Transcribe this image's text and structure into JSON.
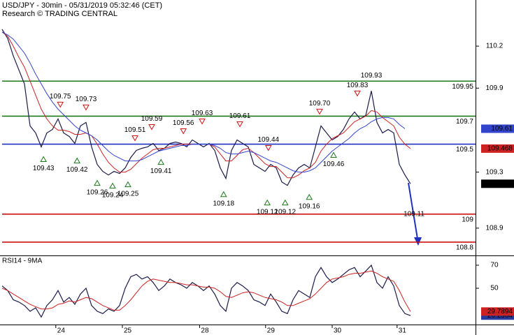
{
  "chart_data": [
    {
      "type": "line",
      "title": "USD/JPY - 30min - 05/31/2019 05:32:46 (CET)",
      "subtitle": "Research © TRADING CENTRAL",
      "xlim": [
        0,
        84.5
      ],
      "xticks": [
        {
          "value": 9.6,
          "label": "24"
        },
        {
          "value": 21.5,
          "label": "25"
        },
        {
          "value": 35.3,
          "label": "28"
        },
        {
          "value": 47.1,
          "label": "29"
        },
        {
          "value": 59,
          "label": "30"
        },
        {
          "value": 70.6,
          "label": "31"
        }
      ],
      "ylim": [
        108.71,
        110.345
      ],
      "yticks": [
        110.2,
        109.9,
        109.3,
        108.9
      ],
      "grid": false,
      "series": [
        {
          "color": "#1a1a4a",
          "last_label": 109.217,
          "values": [
            110.32,
            110.255,
            110.13,
            110.03,
            109.93,
            109.63,
            109.58,
            109.48,
            109.58,
            109.605,
            109.68,
            109.58,
            109.555,
            109.505,
            109.63,
            109.655,
            109.48,
            109.355,
            109.305,
            109.28,
            109.305,
            109.29,
            109.33,
            109.405,
            109.455,
            109.47,
            109.48,
            109.505,
            109.455,
            109.47,
            109.505,
            109.515,
            109.505,
            109.48,
            109.53,
            109.505,
            109.48,
            109.505,
            109.455,
            109.33,
            109.255,
            109.455,
            109.53,
            109.505,
            109.48,
            109.355,
            109.33,
            109.305,
            109.355,
            109.33,
            109.23,
            109.205,
            109.28,
            109.33,
            109.355,
            109.33,
            109.48,
            109.63,
            109.58,
            109.53,
            109.555,
            109.605,
            109.68,
            109.73,
            109.68,
            109.705,
            109.88,
            109.655,
            109.58,
            109.605,
            109.58,
            109.355,
            109.28,
            109.217
          ]
        },
        {
          "color": "#cc2222",
          "last_label": 109.468,
          "values": [
            110.3,
            110.27,
            110.2,
            110.12,
            110.05,
            109.95,
            109.85,
            109.75,
            109.68,
            109.63,
            109.6,
            109.6,
            109.59,
            109.57,
            109.57,
            109.58,
            109.56,
            109.5,
            109.43,
            109.37,
            109.33,
            109.3,
            109.3,
            109.32,
            109.36,
            109.4,
            109.43,
            109.46,
            109.47,
            109.47,
            109.48,
            109.49,
            109.5,
            109.5,
            109.5,
            109.5,
            109.5,
            109.5,
            109.48,
            109.43,
            109.38,
            109.38,
            109.42,
            109.46,
            109.47,
            109.44,
            109.4,
            109.36,
            109.34,
            109.34,
            109.3,
            109.26,
            109.26,
            109.28,
            109.31,
            109.33,
            109.37,
            109.45,
            109.5,
            109.54,
            109.56,
            109.58,
            109.62,
            109.66,
            109.68,
            109.7,
            109.74,
            109.73,
            109.69,
            109.66,
            109.63,
            109.55,
            109.5,
            109.468
          ]
        },
        {
          "color": "#3344cc",
          "last_label": 109.61,
          "values": [
            110.3,
            110.28,
            110.25,
            110.2,
            110.15,
            110.08,
            110.0,
            109.93,
            109.86,
            109.8,
            109.75,
            109.71,
            109.67,
            109.63,
            109.6,
            109.58,
            109.56,
            109.53,
            109.49,
            109.45,
            109.42,
            109.4,
            109.38,
            109.38,
            109.38,
            109.39,
            109.41,
            109.43,
            109.45,
            109.46,
            109.47,
            109.48,
            109.49,
            109.49,
            109.5,
            109.5,
            109.5,
            109.5,
            109.49,
            109.47,
            109.44,
            109.43,
            109.43,
            109.44,
            109.45,
            109.44,
            109.42,
            109.4,
            109.38,
            109.37,
            109.35,
            109.33,
            109.31,
            109.3,
            109.3,
            109.31,
            109.33,
            109.37,
            109.41,
            109.45,
            109.48,
            109.51,
            109.54,
            109.58,
            109.61,
            109.63,
            109.66,
            109.68,
            109.69,
            109.69,
            109.68,
            109.64,
            109.61,
            null
          ]
        }
      ],
      "levels": [
        {
          "value": 109.95,
          "color": "#1a7a1a"
        },
        {
          "value": 109.7,
          "color": "#1a7a1a"
        },
        {
          "value": 109.5,
          "color": "#1f2fbf"
        },
        {
          "value": 109,
          "color": "#cc1111"
        },
        {
          "value": 108.8,
          "color": "#cc1111"
        }
      ],
      "annotations": [
        {
          "x": 7.4,
          "value": 109.43,
          "direction": "up"
        },
        {
          "x": 13.4,
          "value": 109.42,
          "direction": "up"
        },
        {
          "x": 17,
          "value": 109.26,
          "direction": "up"
        },
        {
          "x": 19.75,
          "value": 109.24,
          "direction": "up"
        },
        {
          "x": 22.5,
          "value": 109.25,
          "direction": "up"
        },
        {
          "x": 28.4,
          "value": 109.41,
          "direction": "up"
        },
        {
          "x": 39.6,
          "value": 109.18,
          "direction": "up"
        },
        {
          "x": 47.4,
          "value": 109.12,
          "direction": "up"
        },
        {
          "x": 50.6,
          "value": 109.12,
          "direction": "up"
        },
        {
          "x": 54.9,
          "value": 109.16,
          "direction": "up"
        },
        {
          "x": 59.25,
          "value": 109.46,
          "direction": "up"
        },
        {
          "x": 10.4,
          "value": 109.75,
          "direction": "down"
        },
        {
          "x": 15,
          "value": 109.73,
          "direction": "down"
        },
        {
          "x": 23.75,
          "value": 109.51,
          "direction": "down"
        },
        {
          "x": 26.75,
          "value": 109.59,
          "direction": "down"
        },
        {
          "x": 32.4,
          "value": 109.56,
          "direction": "down"
        },
        {
          "x": 35.75,
          "value": 109.63,
          "direction": "down"
        },
        {
          "x": 42.5,
          "value": 109.61,
          "direction": "down"
        },
        {
          "x": 47.6,
          "value": 109.44,
          "direction": "down"
        },
        {
          "x": 56.75,
          "value": {
            "value": 109.7,
            "label": "109.70"
          },
          "direction": "down"
        },
        {
          "x": 63.5,
          "value": 109.83,
          "direction": "down"
        },
        {
          "x": 66,
          "value": 109.93,
          "direction": "none"
        }
      ],
      "target": 109.11
    },
    {
      "type": "line",
      "title": "RSI14 - 9MA",
      "xlim": [
        0,
        84.5
      ],
      "ylim": [
        18.5,
        76.06
      ],
      "yticks": [
        70,
        50
      ],
      "series": [
        {
          "color": "#1a1a4a",
          "last_label": 26.2364,
          "label_color": "#2a3a9a",
          "values": [
            52,
            48,
            40,
            38,
            35,
            30,
            33,
            25,
            35,
            40,
            48,
            38,
            42,
            36,
            45,
            50,
            35,
            30,
            28,
            32,
            30,
            35,
            50,
            60,
            62,
            58,
            60,
            55,
            48,
            52,
            58,
            55,
            53,
            50,
            55,
            52,
            48,
            52,
            45,
            35,
            30,
            50,
            55,
            52,
            48,
            40,
            38,
            35,
            45,
            38,
            30,
            28,
            40,
            48,
            45,
            42,
            60,
            68,
            60,
            55,
            58,
            62,
            66,
            68,
            60,
            65,
            70,
            55,
            50,
            60,
            52,
            35,
            28,
            26.2364
          ]
        },
        {
          "color": "#cc2222",
          "last_label": 29.7894,
          "label_color": "#cc2222",
          "values": [
            50,
            48,
            45,
            42,
            39,
            36,
            34,
            32,
            32,
            33,
            36,
            37,
            39,
            38,
            40,
            42,
            41,
            38,
            35,
            33,
            31,
            31,
            35,
            40,
            46,
            52,
            56,
            58,
            57,
            56,
            55,
            55,
            54,
            53,
            53,
            52,
            51,
            51,
            50,
            47,
            43,
            42,
            44,
            46,
            47,
            46,
            44,
            42,
            41,
            40,
            38,
            35,
            35,
            37,
            39,
            41,
            45,
            50,
            55,
            58,
            59,
            60,
            62,
            63,
            63,
            64,
            65,
            63,
            60,
            58,
            56,
            48,
            38,
            29.7894
          ]
        }
      ]
    }
  ]
}
